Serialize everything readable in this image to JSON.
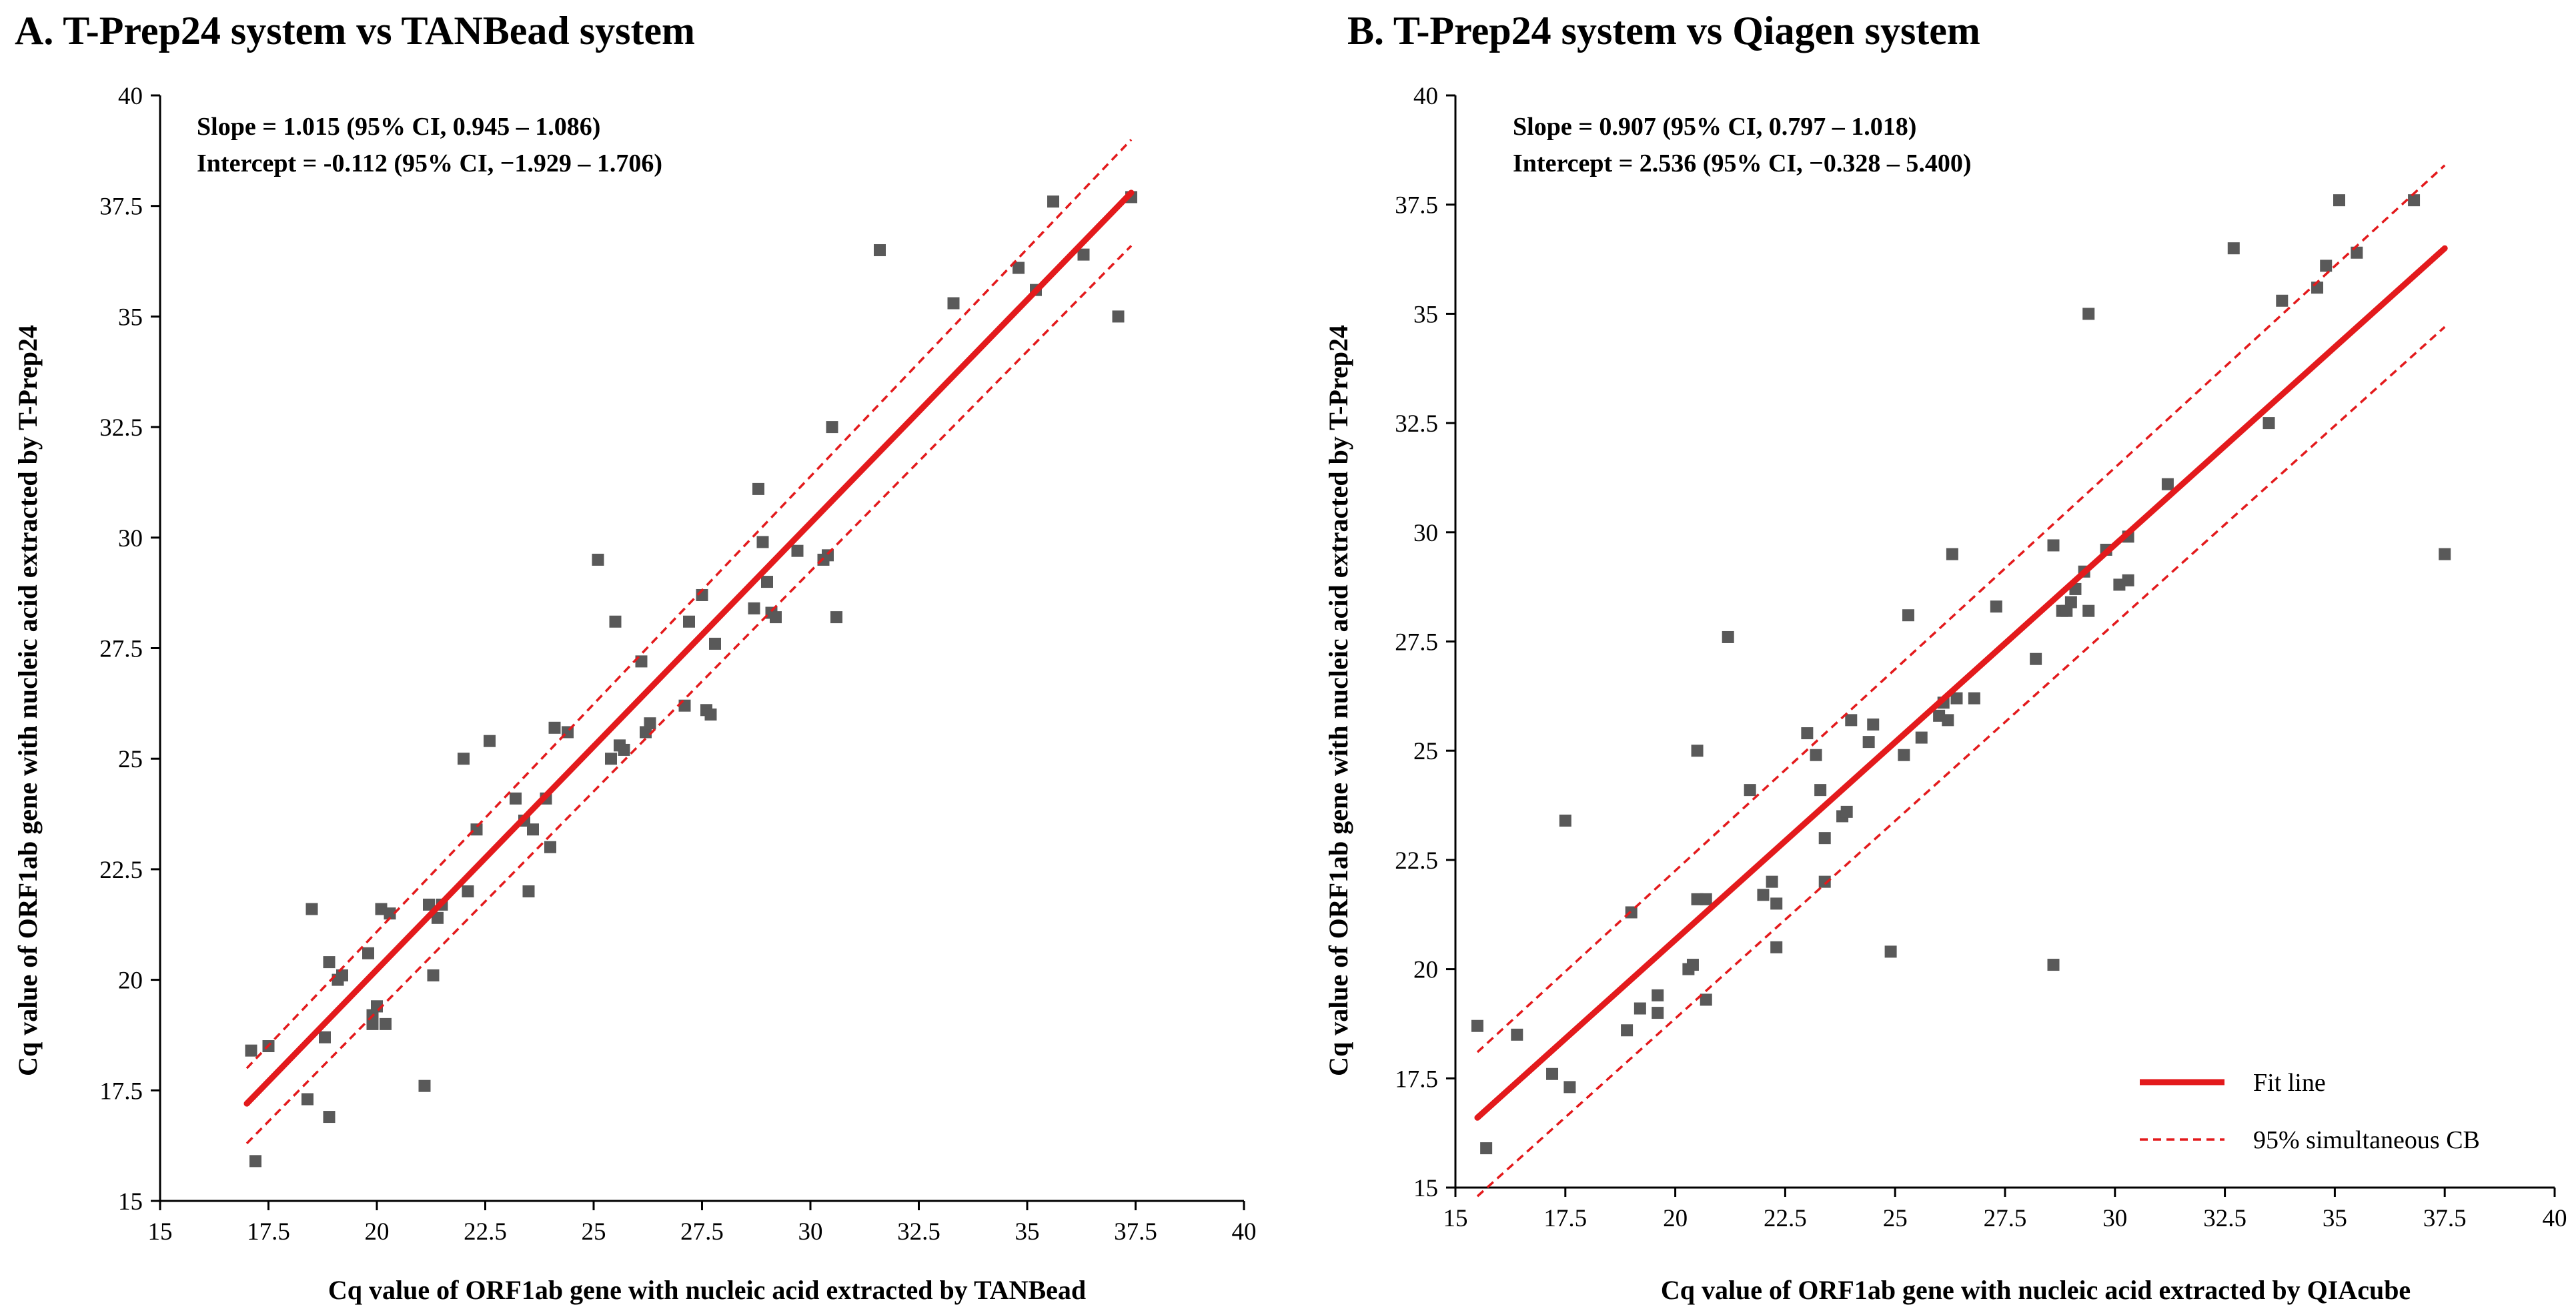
{
  "chart_data": [
    {
      "type": "scatter",
      "title": "A. T-Prep24 system vs TANBead system",
      "xlabel": "Cq value of ORF1ab gene with nucleic acid extracted by TANBead",
      "ylabel": "Cq value of ORF1ab gene with nucleic acid extracted by T-Prep24",
      "xlim": [
        15,
        40
      ],
      "ylim": [
        15,
        40
      ],
      "xticks": [
        "15",
        "17.5",
        "20",
        "22.5",
        "25",
        "27.5",
        "30",
        "32.5",
        "35",
        "37.5",
        "40"
      ],
      "yticks": [
        "15",
        "17.5",
        "20",
        "22.5",
        "25",
        "27.5",
        "30",
        "32.5",
        "35",
        "37.5",
        "40"
      ],
      "annotations": [
        "Slope = 1.015 (95% CI, 0.945 – 1.086)",
        "Intercept = -0.112 (95% CI, −1.929 – 1.706)"
      ],
      "fit_line": {
        "x": [
          17.0,
          37.4
        ],
        "y": [
          17.2,
          37.8
        ]
      },
      "cb_upper": {
        "x": [
          17.0,
          37.4
        ],
        "y": [
          18.0,
          39.0
        ]
      },
      "cb_lower": {
        "x": [
          17.0,
          37.4
        ],
        "y": [
          16.3,
          36.6
        ]
      },
      "points": {
        "x": [
          17.1,
          17.2,
          17.5,
          18.4,
          18.5,
          18.8,
          18.9,
          18.9,
          19.1,
          19.2,
          19.8,
          19.9,
          19.9,
          20.0,
          20.0,
          20.1,
          20.2,
          20.3,
          21.1,
          21.2,
          21.3,
          21.4,
          21.5,
          22.0,
          22.1,
          22.3,
          22.6,
          23.2,
          23.4,
          23.5,
          23.6,
          23.9,
          24.0,
          24.1,
          24.4,
          25.1,
          25.4,
          25.5,
          25.6,
          25.7,
          26.1,
          26.2,
          26.3,
          27.1,
          27.2,
          27.5,
          27.6,
          27.7,
          27.8,
          28.7,
          28.8,
          28.9,
          29.0,
          29.1,
          29.2,
          29.7,
          30.3,
          30.4,
          30.5,
          30.6,
          31.6,
          33.3,
          34.8,
          35.2,
          35.6,
          36.3,
          37.1,
          37.4
        ],
        "y": [
          18.4,
          15.9,
          18.5,
          17.3,
          21.6,
          18.7,
          20.4,
          16.9,
          20.0,
          20.1,
          20.6,
          19.0,
          19.2,
          19.4,
          19.4,
          21.6,
          19.0,
          21.5,
          17.6,
          21.7,
          20.1,
          21.4,
          21.7,
          25.0,
          22.0,
          23.4,
          25.4,
          24.1,
          23.6,
          22.0,
          23.4,
          24.1,
          23.0,
          25.7,
          25.6,
          29.5,
          25.0,
          28.1,
          25.3,
          25.2,
          27.2,
          25.6,
          25.8,
          26.2,
          28.1,
          28.7,
          26.1,
          26.0,
          27.6,
          28.4,
          31.1,
          29.9,
          29.0,
          28.3,
          28.2,
          29.7,
          29.5,
          29.6,
          32.5,
          28.2,
          36.5,
          35.3,
          36.1,
          35.6,
          37.6,
          36.4,
          35.0,
          37.7
        ]
      }
    },
    {
      "type": "scatter",
      "title": "B. T-Prep24 system vs Qiagen system",
      "xlabel": "Cq value of ORF1ab gene with nucleic acid extracted by QIAcube",
      "ylabel": "Cq value of ORF1ab gene with nucleic acid extracted by T-Prep24",
      "xlim": [
        15,
        40
      ],
      "ylim": [
        15,
        40
      ],
      "xticks": [
        "15",
        "17.5",
        "20",
        "22.5",
        "25",
        "27.5",
        "30",
        "32.5",
        "35",
        "37.5",
        "40"
      ],
      "yticks": [
        "15",
        "17.5",
        "20",
        "22.5",
        "25",
        "27.5",
        "30",
        "32.5",
        "35",
        "37.5",
        "40"
      ],
      "annotations": [
        "Slope = 0.907 (95% CI, 0.797 – 1.018)",
        "Intercept = 2.536 (95% CI, −0.328 – 5.400)"
      ],
      "legend": {
        "position": "bottom-right",
        "fit_label": "Fit line",
        "cb_label": "95% simultaneous CB"
      },
      "fit_line": {
        "x": [
          15.5,
          37.5
        ],
        "y": [
          16.6,
          36.5
        ]
      },
      "cb_upper": {
        "x": [
          15.5,
          37.5
        ],
        "y": [
          18.1,
          38.4
        ]
      },
      "cb_lower": {
        "x": [
          15.5,
          37.5
        ],
        "y": [
          14.8,
          34.7
        ]
      },
      "points": {
        "x": [
          15.5,
          15.7,
          16.4,
          17.2,
          17.5,
          17.6,
          18.9,
          19.0,
          19.2,
          19.6,
          19.6,
          20.3,
          20.4,
          20.5,
          20.5,
          20.7,
          20.7,
          21.2,
          21.7,
          22.0,
          22.2,
          22.3,
          22.3,
          23.0,
          23.2,
          23.3,
          23.4,
          23.4,
          23.8,
          23.9,
          24.0,
          24.4,
          24.5,
          24.9,
          25.2,
          25.3,
          25.6,
          26.0,
          26.1,
          26.2,
          26.3,
          26.4,
          26.8,
          27.3,
          28.2,
          28.6,
          28.6,
          28.8,
          28.9,
          29.0,
          29.1,
          29.3,
          29.4,
          29.4,
          29.8,
          30.1,
          30.3,
          30.3,
          31.2,
          32.7,
          33.5,
          33.8,
          34.6,
          34.8,
          35.1,
          35.5,
          36.8,
          37.5
        ],
        "y": [
          18.7,
          15.9,
          18.5,
          17.6,
          23.4,
          17.3,
          18.6,
          21.3,
          19.1,
          19.4,
          19.0,
          20.0,
          20.1,
          21.6,
          25.0,
          19.3,
          21.6,
          27.6,
          24.1,
          21.7,
          22.0,
          21.5,
          20.5,
          25.4,
          24.9,
          24.1,
          22.0,
          23.0,
          23.5,
          23.6,
          25.7,
          25.2,
          25.6,
          20.4,
          24.9,
          28.1,
          25.3,
          25.8,
          26.1,
          25.7,
          29.5,
          26.2,
          26.2,
          28.3,
          27.1,
          20.1,
          29.7,
          28.2,
          28.2,
          28.4,
          28.7,
          29.1,
          35.0,
          28.2,
          29.6,
          28.8,
          29.9,
          28.9,
          31.1,
          36.5,
          32.5,
          35.3,
          35.6,
          36.1,
          37.6,
          36.4,
          37.6,
          29.5
        ]
      }
    }
  ]
}
